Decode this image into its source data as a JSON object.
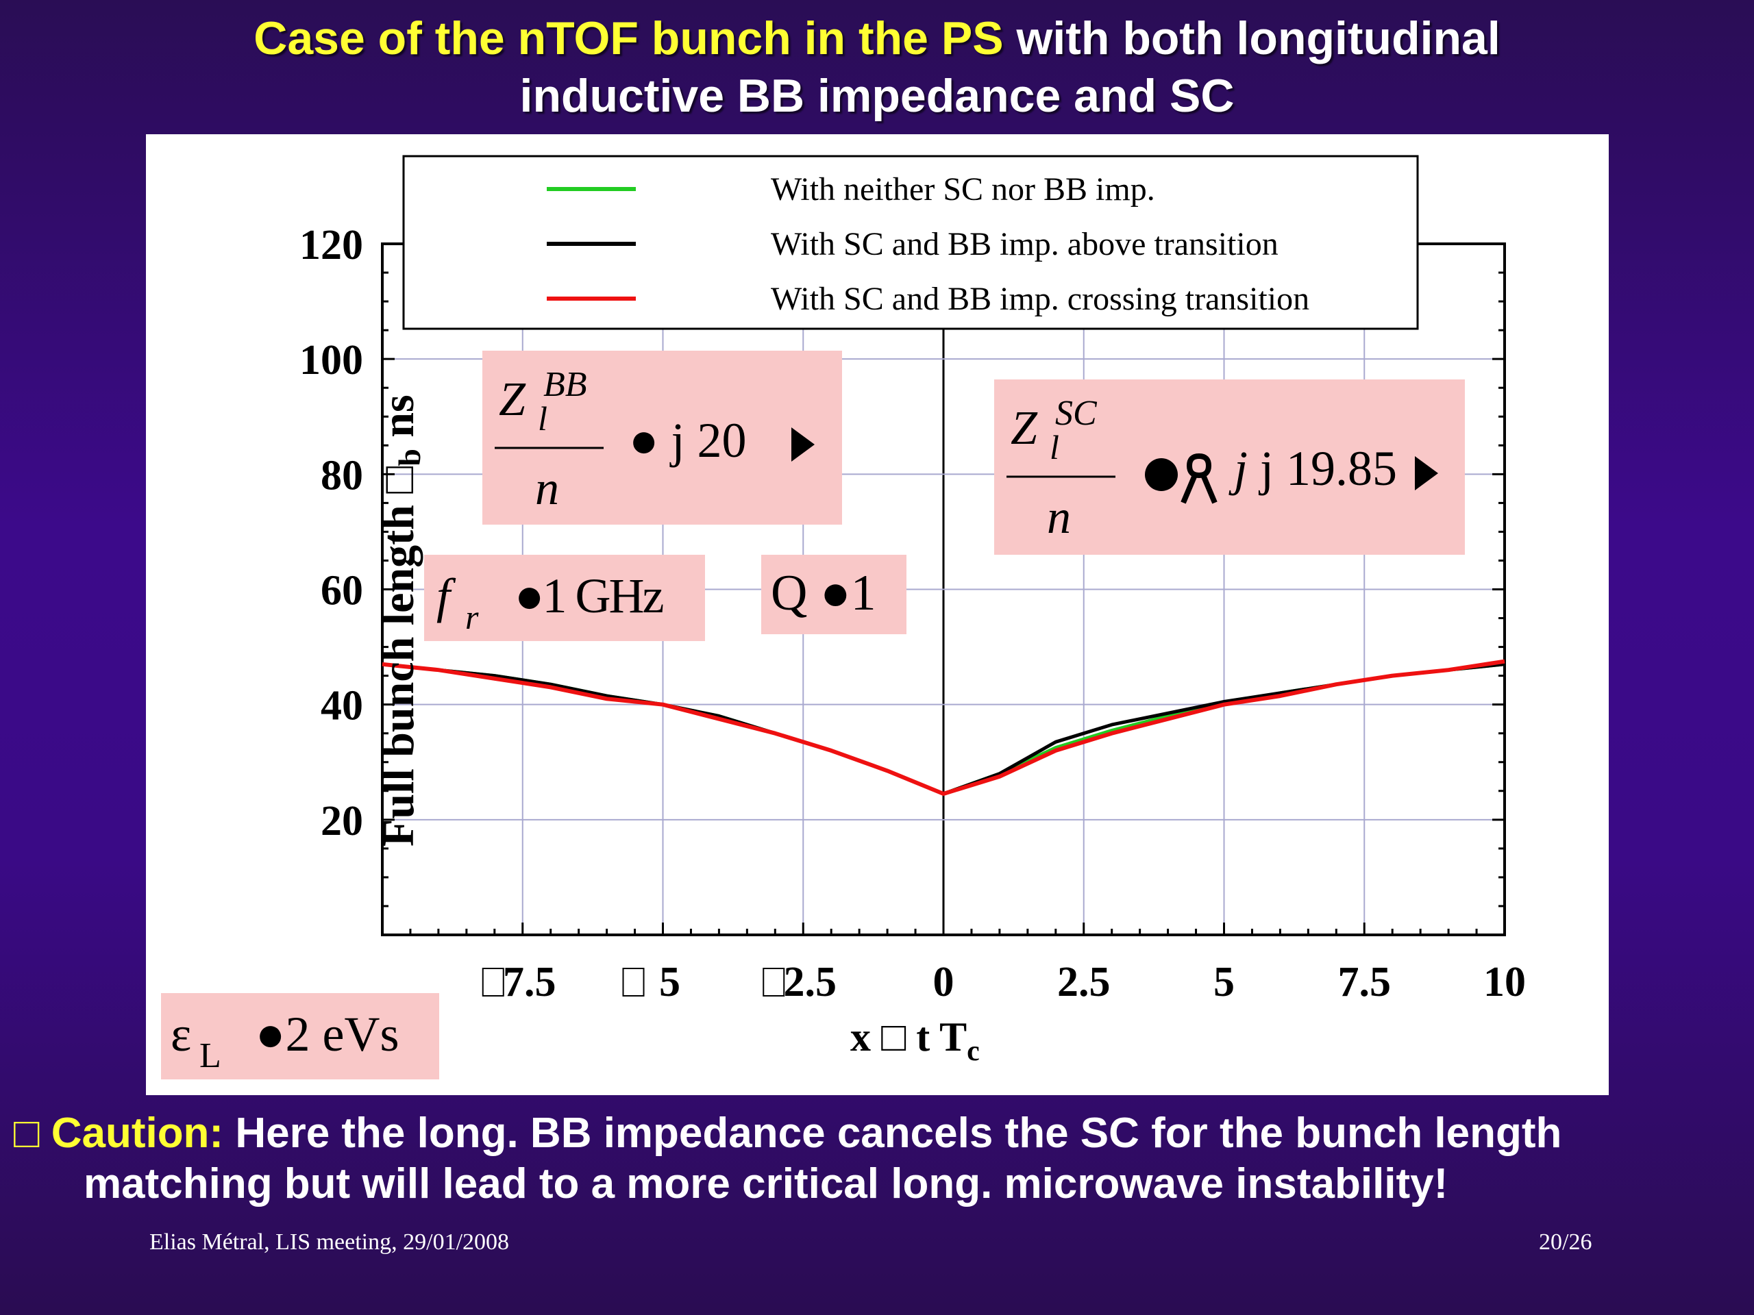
{
  "slide": {
    "title_highlight": "Case of the nTOF bunch in the PS",
    "title_rest_line1": "with both longitudinal",
    "title_line2": "inductive BB impedance and SC",
    "caution_bullet": "",
    "caution_label": "Caution:",
    "caution_text_line1": "Here the long. BB impedance cancels the SC for the bunch length",
    "caution_text_line2": "matching but will lead to a more critical long. microwave instability!",
    "footer_left": "Elias Métral, LIS meeting, 29/01/2008",
    "page_number": "20/26"
  },
  "annotations": {
    "zbb_numer": "Z",
    "zbb_sup": "BB",
    "zbb_sub": "l",
    "zbb_denom": "n",
    "zbb_rhs": "● j 20 ",
    "zsc_numer": "Z",
    "zsc_sup": "SC",
    "zsc_sub": "l",
    "zsc_denom": "n",
    "zsc_rhs": "j 19.85 ",
    "fr_lhs": "f",
    "fr_sub": "r",
    "fr_rhs": "●1 GHz",
    "q_text": "Q ●1",
    "eps_lhs": "ε",
    "eps_sub": "L",
    "eps_rhs": "●2 eVs"
  },
  "colors": {
    "accent_yellow": "#ffff33",
    "annotation_bg": "#f9c8c8",
    "green_series": "#22cc22",
    "black_series": "#000000",
    "red_series": "#ee1111"
  },
  "chart_data": {
    "type": "line",
    "ylabel": "Full bunch length  b  ns",
    "ylabel_symbol_sub": "b",
    "xlabel": "x  t   T",
    "xlabel_sub": "c",
    "xlim": [
      -10,
      10
    ],
    "ylim": [
      0,
      120
    ],
    "xticks": [
      "7.5",
      "5",
      "2.5",
      "0",
      "2.5",
      "5",
      "7.5",
      "10"
    ],
    "xtick_values": [
      -7.5,
      -5,
      -2.5,
      0,
      2.5,
      5,
      7.5,
      10
    ],
    "yticks": [
      "20",
      "40",
      "60",
      "80",
      "100",
      "120"
    ],
    "ytick_values": [
      20,
      40,
      60,
      80,
      100,
      120
    ],
    "grid": true,
    "legend_position": "top",
    "x": [
      -10,
      -9,
      -8,
      -7,
      -6,
      -5,
      -4,
      -3,
      -2,
      -1,
      0,
      1,
      2,
      3,
      4,
      5,
      6,
      7,
      8,
      9,
      10
    ],
    "series": [
      {
        "name": "With neither SC nor BB imp.",
        "color": "#22cc22",
        "values": [
          47,
          46,
          45,
          43.5,
          41.5,
          40,
          38,
          35,
          32,
          28.5,
          24.5,
          28,
          32.5,
          35.5,
          38,
          40,
          42,
          43.5,
          45,
          46,
          47
        ]
      },
      {
        "name": "With SC and BB imp. above transition",
        "color": "#000000",
        "values": [
          47,
          46,
          45,
          43.5,
          41.5,
          40,
          38,
          35,
          32,
          28.5,
          24.5,
          28,
          33.5,
          36.5,
          38.5,
          40.5,
          42,
          43.5,
          45,
          46,
          47
        ]
      },
      {
        "name": "With SC and BB imp. crossing transition",
        "color": "#ee1111",
        "values": [
          47,
          46,
          44.5,
          43,
          41,
          40,
          37.5,
          35,
          32,
          28.5,
          24.5,
          27.5,
          32,
          35,
          37.5,
          40,
          41.5,
          43.5,
          45,
          46,
          47.5
        ]
      }
    ]
  }
}
